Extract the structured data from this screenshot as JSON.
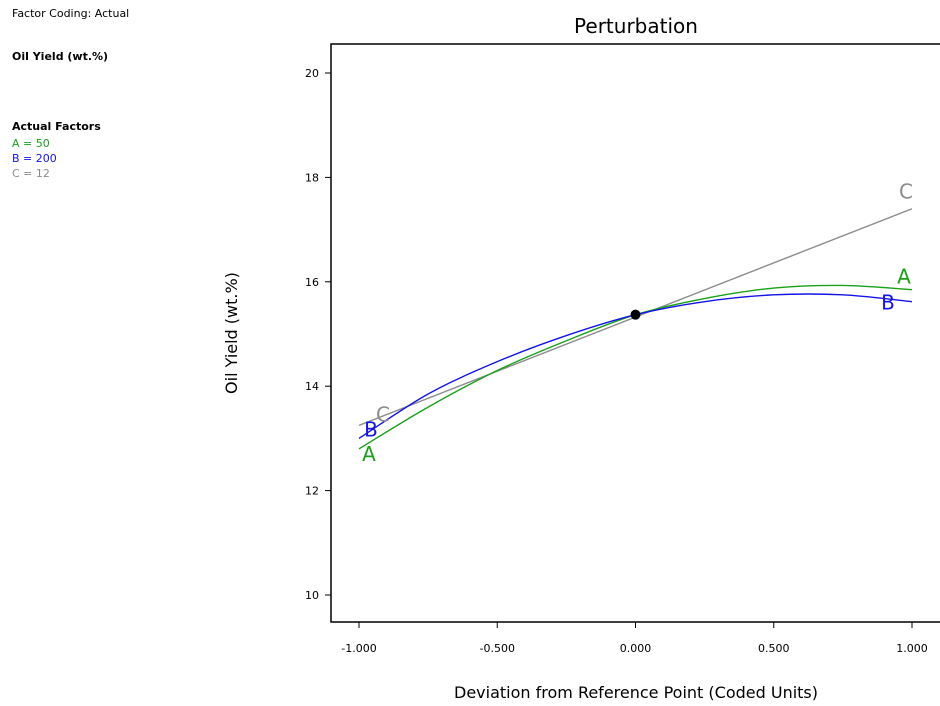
{
  "sidebar": {
    "factor_coding": "Factor Coding: Actual",
    "response": "Oil Yield (wt.%)",
    "actual_factors_title": "Actual Factors",
    "factors": [
      {
        "text": "A = 50",
        "color": "#1aa01a"
      },
      {
        "text": "B = 200",
        "color": "#1414e6"
      },
      {
        "text": "C = 12",
        "color": "#8c8c8c"
      }
    ]
  },
  "chart_data": {
    "type": "line",
    "title": "Perturbation",
    "xlabel": "Deviation from Reference Point (Coded Units)",
    "ylabel": "Oil Yield (wt.%)",
    "xlim": [
      -1.0,
      1.0
    ],
    "ylim": [
      10,
      20
    ],
    "xticks": [
      -1.0,
      -0.5,
      0.0,
      0.5,
      1.0
    ],
    "xtick_labels": [
      "-1.000",
      "-0.500",
      "0.000",
      "0.500",
      "1.000"
    ],
    "yticks": [
      10,
      12,
      14,
      16,
      18,
      20
    ],
    "ytick_labels": [
      "10",
      "12",
      "14",
      "16",
      "18",
      "20"
    ],
    "reference_point": {
      "x": 0.0,
      "y": 15.37
    },
    "series": [
      {
        "name": "A",
        "color": "#1aa01a",
        "x": [
          -1.0,
          -0.75,
          -0.5,
          -0.25,
          0.0,
          0.25,
          0.5,
          0.75,
          1.0
        ],
        "y": [
          12.8,
          13.6,
          14.3,
          14.87,
          15.37,
          15.68,
          15.88,
          15.93,
          15.85
        ]
      },
      {
        "name": "B",
        "color": "#1414e6",
        "x": [
          -1.0,
          -0.75,
          -0.5,
          -0.25,
          0.0,
          0.25,
          0.5,
          0.75,
          1.0
        ],
        "y": [
          13.0,
          13.85,
          14.47,
          14.97,
          15.37,
          15.62,
          15.75,
          15.75,
          15.62
        ]
      },
      {
        "name": "C",
        "color": "#8c8c8c",
        "x": [
          -1.0,
          1.0
        ],
        "y": [
          13.25,
          17.4
        ]
      }
    ]
  }
}
